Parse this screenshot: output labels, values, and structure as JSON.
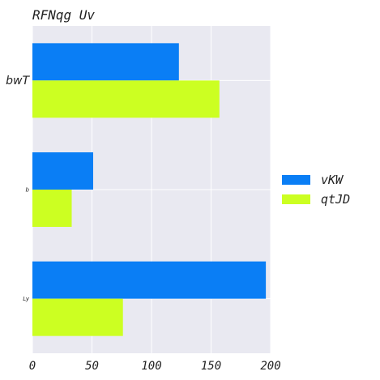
{
  "chart_data": {
    "type": "bar",
    "orientation": "horizontal",
    "title": "RFNqg Uv",
    "categories": [
      "bwT",
      "b",
      "Ly"
    ],
    "series": [
      {
        "name": "vKW",
        "values": [
          123,
          51,
          196
        ],
        "color": "#0a7ef5"
      },
      {
        "name": "qtJD",
        "values": [
          157,
          33,
          76
        ],
        "color": "#ccff22"
      }
    ],
    "xlim": [
      0,
      200
    ],
    "xticks": [
      0,
      50,
      100,
      150,
      200
    ],
    "xlabel": "",
    "ylabel": "",
    "grid": true,
    "legend_position": "right"
  }
}
